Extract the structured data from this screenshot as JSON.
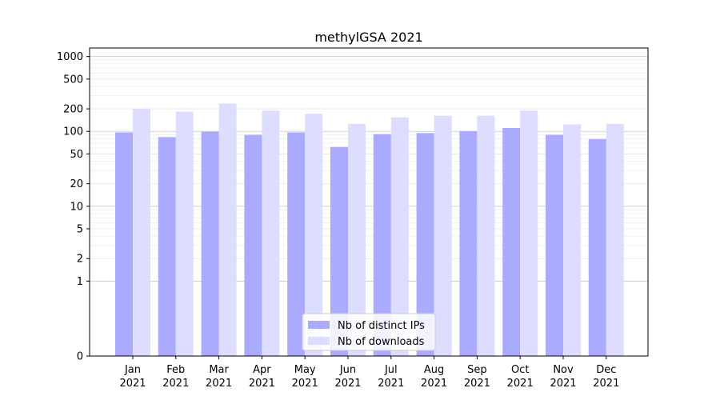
{
  "chart_data": {
    "type": "bar",
    "title": "methylGSA 2021",
    "xlabel": "",
    "ylabel": "",
    "yscale": "symlog",
    "ylim": [
      0,
      1300
    ],
    "yticks": [
      0,
      1,
      2,
      5,
      10,
      20,
      50,
      100,
      200,
      500,
      1000
    ],
    "grid": true,
    "categories": [
      [
        "Jan",
        "2021"
      ],
      [
        "Feb",
        "2021"
      ],
      [
        "Mar",
        "2021"
      ],
      [
        "Apr",
        "2021"
      ],
      [
        "May",
        "2021"
      ],
      [
        "Jun",
        "2021"
      ],
      [
        "Jul",
        "2021"
      ],
      [
        "Aug",
        "2021"
      ],
      [
        "Sep",
        "2021"
      ],
      [
        "Oct",
        "2021"
      ],
      [
        "Nov",
        "2021"
      ],
      [
        "Dec",
        "2021"
      ]
    ],
    "series": [
      {
        "name": "Nb of distinct IPs",
        "color": "#aaaaff",
        "values": [
          97,
          84,
          99,
          90,
          97,
          62,
          92,
          95,
          101,
          111,
          90,
          79
        ]
      },
      {
        "name": "Nb of downloads",
        "color": "#ddddff",
        "values": [
          200,
          184,
          236,
          190,
          172,
          126,
          154,
          162,
          162,
          190,
          124,
          126
        ]
      }
    ],
    "legend_position": "bottom-center"
  }
}
